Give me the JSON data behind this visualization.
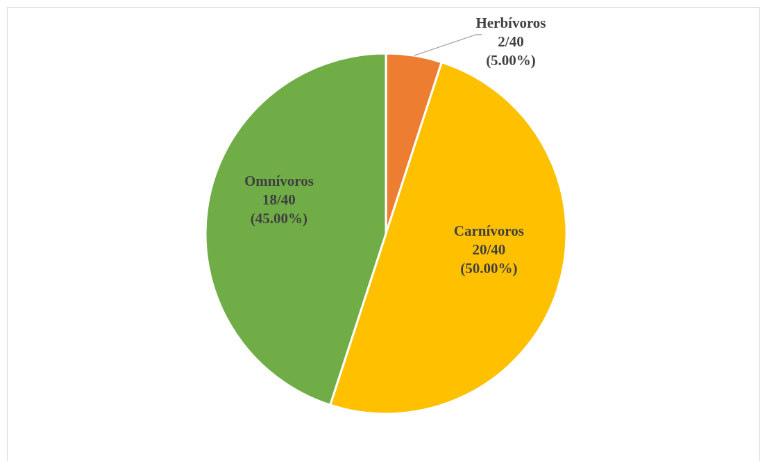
{
  "chart_data": {
    "type": "pie",
    "categories": [
      "Herbívoros",
      "Carnívoros",
      "Omnívoros"
    ],
    "values": [
      2,
      20,
      18
    ],
    "value_labels": [
      "2/40 (5.00%)",
      "20/40 (50.00%)",
      "18/40 (45.00%)"
    ],
    "colors": [
      "#ed7d31",
      "#ffc000",
      "#70ad47"
    ],
    "legend": false
  }
}
